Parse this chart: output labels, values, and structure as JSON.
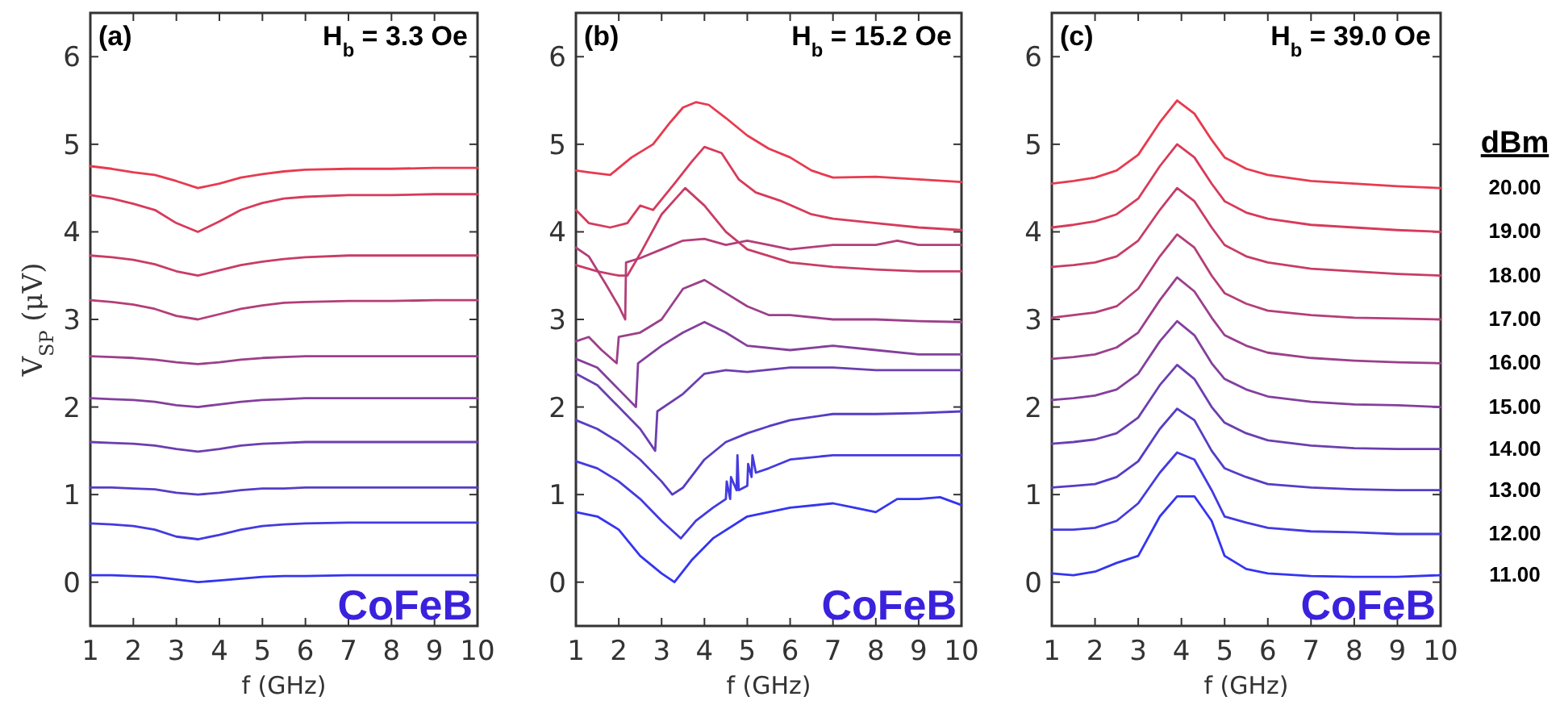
{
  "chart_data": [
    {
      "type": "line",
      "title": "(a)",
      "subtitle": "H$_{b}$ = 3.3 Oe",
      "xlabel": "f (GHz)",
      "ylabel": "V$_{SP}$ (μV)",
      "annotations": [
        "CoFeB"
      ],
      "xlim": [
        1,
        10
      ],
      "ylim": [
        -0.5,
        6.5
      ],
      "xticks": [
        1,
        2,
        3,
        4,
        5,
        6,
        7,
        8,
        9,
        10
      ],
      "yticks": [
        0,
        1,
        2,
        3,
        4,
        5,
        6
      ],
      "grid": false,
      "legend": false,
      "marker": "none",
      "line_style": "solid",
      "x": [
        1,
        1.5,
        2,
        2.5,
        3,
        3.5,
        4,
        4.5,
        5,
        5.5,
        6,
        7,
        8,
        9,
        10
      ],
      "series": [
        {
          "color": "#e83a4f",
          "values": [
            4.75,
            4.72,
            4.68,
            4.65,
            4.58,
            4.5,
            4.55,
            4.62,
            4.66,
            4.69,
            4.71,
            4.72,
            4.72,
            4.73,
            4.73
          ]
        },
        {
          "color": "#d83a5a",
          "values": [
            4.42,
            4.38,
            4.32,
            4.25,
            4.1,
            4.0,
            4.12,
            4.25,
            4.33,
            4.38,
            4.4,
            4.42,
            4.42,
            4.43,
            4.43
          ]
        },
        {
          "color": "#c83c66",
          "values": [
            3.73,
            3.71,
            3.68,
            3.63,
            3.55,
            3.5,
            3.56,
            3.62,
            3.66,
            3.69,
            3.71,
            3.73,
            3.73,
            3.73,
            3.73
          ]
        },
        {
          "color": "#b43e78",
          "values": [
            3.22,
            3.2,
            3.17,
            3.12,
            3.04,
            3.0,
            3.06,
            3.12,
            3.16,
            3.19,
            3.2,
            3.21,
            3.21,
            3.22,
            3.22
          ]
        },
        {
          "color": "#9c3f8a",
          "values": [
            2.58,
            2.57,
            2.56,
            2.54,
            2.51,
            2.49,
            2.51,
            2.54,
            2.56,
            2.57,
            2.58,
            2.58,
            2.58,
            2.58,
            2.58
          ]
        },
        {
          "color": "#843f9c",
          "values": [
            2.1,
            2.09,
            2.08,
            2.06,
            2.02,
            2.0,
            2.03,
            2.06,
            2.08,
            2.09,
            2.1,
            2.1,
            2.1,
            2.1,
            2.1
          ]
        },
        {
          "color": "#6c3eb0",
          "values": [
            1.6,
            1.59,
            1.58,
            1.56,
            1.52,
            1.49,
            1.52,
            1.56,
            1.58,
            1.59,
            1.6,
            1.6,
            1.6,
            1.6,
            1.6
          ]
        },
        {
          "color": "#573cc6",
          "values": [
            1.08,
            1.08,
            1.07,
            1.06,
            1.02,
            1.0,
            1.02,
            1.05,
            1.07,
            1.07,
            1.08,
            1.08,
            1.08,
            1.08,
            1.08
          ]
        },
        {
          "color": "#443ae0",
          "values": [
            0.67,
            0.66,
            0.64,
            0.6,
            0.52,
            0.49,
            0.54,
            0.6,
            0.64,
            0.66,
            0.67,
            0.68,
            0.68,
            0.68,
            0.68
          ]
        },
        {
          "color": "#3434f2",
          "values": [
            0.08,
            0.08,
            0.07,
            0.06,
            0.03,
            0.0,
            0.02,
            0.04,
            0.06,
            0.07,
            0.07,
            0.08,
            0.08,
            0.08,
            0.08
          ]
        }
      ]
    },
    {
      "type": "line",
      "title": "(b)",
      "subtitle": "H$_{b}$ = 15.2 Oe",
      "xlabel": "f (GHz)",
      "annotations": [
        "CoFeB"
      ],
      "xlim": [
        1,
        10
      ],
      "ylim": [
        -0.5,
        6.5
      ],
      "xticks": [
        1,
        2,
        3,
        4,
        5,
        6,
        7,
        8,
        9,
        10
      ],
      "yticks": [
        0,
        1,
        2,
        3,
        4,
        5,
        6
      ],
      "grid": false,
      "legend": false,
      "marker": "none",
      "line_style": "solid",
      "series": [
        {
          "color": "#e83a4f",
          "x": [
            1,
            1.3,
            1.8,
            2.3,
            2.8,
            3.2,
            3.5,
            3.8,
            4.1,
            4.5,
            5,
            5.5,
            6,
            6.5,
            7,
            8,
            9,
            10
          ],
          "values": [
            4.7,
            4.68,
            4.65,
            4.85,
            5.0,
            5.25,
            5.42,
            5.48,
            5.45,
            5.3,
            5.1,
            4.95,
            4.85,
            4.7,
            4.62,
            4.63,
            4.6,
            4.57
          ]
        },
        {
          "color": "#d83a5a",
          "x": [
            1,
            1.3,
            1.8,
            2.2,
            2.5,
            2.8,
            3.3,
            3.7,
            4.0,
            4.4,
            4.8,
            5.2,
            5.8,
            6.5,
            7,
            8,
            9,
            10
          ],
          "values": [
            4.25,
            4.1,
            4.05,
            4.1,
            4.3,
            4.25,
            4.55,
            4.8,
            4.97,
            4.9,
            4.6,
            4.45,
            4.35,
            4.2,
            4.15,
            4.1,
            4.05,
            4.02
          ]
        },
        {
          "color": "#c83c66",
          "x": [
            1,
            1.5,
            2,
            2.2,
            2.5,
            3,
            3.55,
            4,
            4.5,
            5,
            6,
            7,
            8,
            9,
            10
          ],
          "values": [
            3.62,
            3.55,
            3.5,
            3.5,
            3.75,
            4.2,
            4.5,
            4.3,
            4.0,
            3.8,
            3.65,
            3.6,
            3.57,
            3.55,
            3.55
          ]
        },
        {
          "color": "#b43e78",
          "x": [
            1,
            1.3,
            1.7,
            2.0,
            2.15,
            2.17,
            2.5,
            3.0,
            3.5,
            4.0,
            4.5,
            5,
            5.5,
            6,
            7,
            8,
            8.5,
            9,
            10
          ],
          "values": [
            3.82,
            3.72,
            3.4,
            3.15,
            3.0,
            3.65,
            3.7,
            3.8,
            3.9,
            3.92,
            3.85,
            3.9,
            3.85,
            3.8,
            3.85,
            3.85,
            3.9,
            3.85,
            3.85
          ]
        },
        {
          "color": "#9c3f8a",
          "x": [
            1,
            1.3,
            1.6,
            1.95,
            2.0,
            2.5,
            3,
            3.5,
            4,
            4.5,
            5,
            5.5,
            6,
            7,
            8,
            9,
            10
          ],
          "values": [
            2.75,
            2.8,
            2.65,
            2.5,
            2.8,
            2.85,
            3.0,
            3.35,
            3.45,
            3.3,
            3.15,
            3.05,
            3.05,
            3.0,
            3.0,
            2.98,
            2.97
          ]
        },
        {
          "color": "#843f9c",
          "x": [
            1,
            1.5,
            2,
            2.4,
            2.45,
            3,
            3.5,
            4,
            4.5,
            5,
            6,
            7,
            8,
            9,
            10
          ],
          "values": [
            2.55,
            2.45,
            2.2,
            2.0,
            2.5,
            2.7,
            2.85,
            2.97,
            2.85,
            2.7,
            2.65,
            2.7,
            2.65,
            2.6,
            2.6
          ]
        },
        {
          "color": "#6c3eb0",
          "x": [
            1,
            1.5,
            2,
            2.5,
            2.85,
            2.9,
            3.5,
            4,
            4.5,
            5,
            6,
            7,
            8,
            9,
            10
          ],
          "values": [
            2.38,
            2.25,
            2.0,
            1.75,
            1.5,
            1.95,
            2.15,
            2.38,
            2.42,
            2.4,
            2.45,
            2.45,
            2.42,
            2.42,
            2.42
          ]
        },
        {
          "color": "#573cc6",
          "x": [
            1,
            1.5,
            2,
            2.5,
            3,
            3.25,
            3.5,
            4,
            4.5,
            5,
            5.5,
            6,
            7,
            8,
            9,
            10
          ],
          "values": [
            1.85,
            1.75,
            1.6,
            1.4,
            1.15,
            1.0,
            1.08,
            1.4,
            1.6,
            1.7,
            1.78,
            1.85,
            1.92,
            1.92,
            1.93,
            1.95
          ]
        },
        {
          "color": "#443ae0",
          "x": [
            1,
            1.5,
            2,
            2.5,
            3,
            3.45,
            3.8,
            4.2,
            4.5,
            4.52,
            4.6,
            4.62,
            4.75,
            4.77,
            4.8,
            5.0,
            5.02,
            5.1,
            5.12,
            5.2,
            5.5,
            6,
            7,
            8,
            9,
            10
          ],
          "values": [
            1.38,
            1.3,
            1.15,
            0.95,
            0.7,
            0.5,
            0.7,
            0.85,
            0.95,
            1.15,
            0.95,
            1.2,
            1.05,
            1.45,
            1.05,
            1.1,
            1.35,
            1.2,
            1.45,
            1.25,
            1.3,
            1.4,
            1.45,
            1.45,
            1.45,
            1.45
          ]
        },
        {
          "color": "#3434f2",
          "x": [
            1,
            1.5,
            2,
            2.5,
            3,
            3.3,
            3.7,
            4.2,
            5,
            5.5,
            6,
            7,
            7.5,
            8,
            8.5,
            9,
            9.5,
            10
          ],
          "values": [
            0.8,
            0.75,
            0.6,
            0.3,
            0.1,
            0.0,
            0.25,
            0.5,
            0.75,
            0.8,
            0.85,
            0.9,
            0.85,
            0.8,
            0.95,
            0.95,
            0.97,
            0.88
          ]
        }
      ]
    },
    {
      "type": "line",
      "title": "(c)",
      "subtitle": "H$_{b}$ = 39.0 Oe",
      "xlabel": "f (GHz)",
      "legend_title": "dBm",
      "annotations": [
        "CoFeB"
      ],
      "xlim": [
        1,
        10
      ],
      "ylim": [
        -0.5,
        6.5
      ],
      "xticks": [
        1,
        2,
        3,
        4,
        5,
        6,
        7,
        8,
        9,
        10
      ],
      "yticks": [
        0,
        1,
        2,
        3,
        4,
        5,
        6
      ],
      "grid": false,
      "legend": "right",
      "marker": "none",
      "line_style": "solid",
      "x": [
        1,
        1.5,
        2,
        2.5,
        3,
        3.5,
        3.9,
        4.3,
        4.7,
        5,
        5.5,
        6,
        7,
        8,
        9,
        10
      ],
      "series": [
        {
          "name": "20.00",
          "color": "#e83a4f",
          "values": [
            4.55,
            4.58,
            4.62,
            4.7,
            4.88,
            5.25,
            5.5,
            5.35,
            5.05,
            4.85,
            4.72,
            4.65,
            4.58,
            4.55,
            4.52,
            4.5
          ]
        },
        {
          "name": "19.00",
          "color": "#d83a5a",
          "values": [
            4.05,
            4.08,
            4.12,
            4.2,
            4.38,
            4.75,
            5.0,
            4.85,
            4.55,
            4.35,
            4.22,
            4.15,
            4.08,
            4.05,
            4.02,
            4.0
          ]
        },
        {
          "name": "18.00",
          "color": "#c83c66",
          "values": [
            3.6,
            3.62,
            3.65,
            3.72,
            3.9,
            4.25,
            4.5,
            4.35,
            4.05,
            3.85,
            3.72,
            3.65,
            3.58,
            3.55,
            3.52,
            3.5
          ]
        },
        {
          "name": "17.00",
          "color": "#b43e78",
          "values": [
            3.02,
            3.05,
            3.08,
            3.15,
            3.35,
            3.72,
            3.97,
            3.82,
            3.5,
            3.3,
            3.18,
            3.1,
            3.05,
            3.02,
            3.01,
            3.0
          ]
        },
        {
          "name": "16.00",
          "color": "#9c3f8a",
          "values": [
            2.55,
            2.57,
            2.6,
            2.68,
            2.85,
            3.22,
            3.48,
            3.32,
            3.02,
            2.82,
            2.7,
            2.62,
            2.56,
            2.53,
            2.51,
            2.5
          ]
        },
        {
          "name": "15.00",
          "color": "#843f9c",
          "values": [
            2.08,
            2.1,
            2.13,
            2.2,
            2.38,
            2.75,
            2.98,
            2.82,
            2.5,
            2.32,
            2.2,
            2.12,
            2.06,
            2.03,
            2.02,
            2.0
          ]
        },
        {
          "name": "14.00",
          "color": "#6c3eb0",
          "values": [
            1.58,
            1.6,
            1.63,
            1.7,
            1.88,
            2.25,
            2.48,
            2.32,
            2.0,
            1.82,
            1.7,
            1.62,
            1.56,
            1.53,
            1.52,
            1.52
          ]
        },
        {
          "name": "13.00",
          "color": "#573cc6",
          "values": [
            1.08,
            1.1,
            1.12,
            1.2,
            1.38,
            1.75,
            1.98,
            1.85,
            1.5,
            1.3,
            1.2,
            1.12,
            1.08,
            1.06,
            1.05,
            1.05
          ]
        },
        {
          "name": "12.00",
          "color": "#443ae0",
          "values": [
            0.6,
            0.6,
            0.62,
            0.7,
            0.9,
            1.25,
            1.48,
            1.4,
            1.05,
            0.75,
            0.68,
            0.62,
            0.58,
            0.57,
            0.55,
            0.55
          ]
        },
        {
          "name": "11.00",
          "color": "#3434f2",
          "values": [
            0.1,
            0.08,
            0.12,
            0.22,
            0.3,
            0.75,
            0.98,
            0.98,
            0.7,
            0.3,
            0.15,
            0.1,
            0.07,
            0.06,
            0.06,
            0.08
          ]
        }
      ]
    }
  ]
}
